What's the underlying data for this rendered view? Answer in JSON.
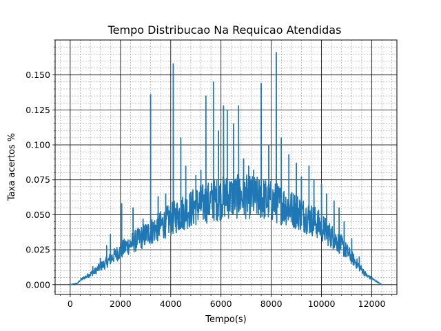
{
  "chart_data": {
    "type": "line",
    "title": "Tempo Distribucao Na Requicao Atendidas",
    "xlabel": "Tempo(s)",
    "ylabel": "Taxa acertos %",
    "xlim": [
      -600,
      13000
    ],
    "ylim": [
      -0.007,
      0.175
    ],
    "xticks": [
      0,
      2000,
      4000,
      6000,
      8000,
      10000,
      12000
    ],
    "xtick_labels": [
      "0",
      "2000",
      "4000",
      "6000",
      "8000",
      "10000",
      "12000"
    ],
    "yticks": [
      0.0,
      0.025,
      0.05,
      0.075,
      0.1,
      0.125,
      0.15
    ],
    "ytick_labels": [
      "0.000",
      "0.025",
      "0.050",
      "0.075",
      "0.100",
      "0.125",
      "0.150"
    ],
    "grid": true,
    "minor_grid": true,
    "line_color": "#1f77b4",
    "series": [
      {
        "x": [
          0,
          300,
          400,
          600,
          800,
          1000,
          1200,
          1400,
          1600,
          1800,
          2000,
          2200,
          2400,
          2600,
          2800,
          3000,
          3200,
          3400,
          3600,
          3800,
          4000,
          4200,
          4400,
          4600,
          4800,
          5000,
          5200,
          5400,
          5600,
          5800,
          6000,
          6200,
          6400,
          6600,
          6800,
          7000,
          7200,
          7400,
          7600,
          7800,
          8000,
          8200,
          8400,
          8600,
          8800,
          9000,
          9200,
          9400,
          9600,
          9800,
          10000,
          10200,
          10400,
          10600,
          10800,
          11000,
          11200,
          11400,
          11600,
          11800,
          12000,
          12200,
          12400
        ],
        "y": [
          0.0,
          0.001,
          0.003,
          0.005,
          0.007,
          0.009,
          0.012,
          0.014,
          0.017,
          0.02,
          0.022,
          0.025,
          0.027,
          0.029,
          0.031,
          0.033,
          0.035,
          0.037,
          0.039,
          0.041,
          0.043,
          0.045,
          0.047,
          0.049,
          0.05,
          0.052,
          0.053,
          0.054,
          0.055,
          0.056,
          0.057,
          0.058,
          0.058,
          0.058,
          0.058,
          0.058,
          0.058,
          0.057,
          0.057,
          0.056,
          0.055,
          0.054,
          0.053,
          0.052,
          0.05,
          0.049,
          0.047,
          0.045,
          0.043,
          0.041,
          0.038,
          0.035,
          0.032,
          0.029,
          0.026,
          0.022,
          0.018,
          0.014,
          0.01,
          0.006,
          0.004,
          0.002,
          0.0
        ]
      }
    ],
    "spikes": [
      {
        "x": 900,
        "y": 0.013
      },
      {
        "x": 1200,
        "y": 0.019
      },
      {
        "x": 1450,
        "y": 0.028
      },
      {
        "x": 1600,
        "y": 0.036
      },
      {
        "x": 2050,
        "y": 0.058
      },
      {
        "x": 2500,
        "y": 0.055
      },
      {
        "x": 2900,
        "y": 0.047
      },
      {
        "x": 3200,
        "y": 0.136
      },
      {
        "x": 3500,
        "y": 0.063
      },
      {
        "x": 3800,
        "y": 0.065
      },
      {
        "x": 4100,
        "y": 0.158
      },
      {
        "x": 4400,
        "y": 0.105
      },
      {
        "x": 4600,
        "y": 0.085
      },
      {
        "x": 5000,
        "y": 0.078
      },
      {
        "x": 5200,
        "y": 0.082
      },
      {
        "x": 5400,
        "y": 0.135
      },
      {
        "x": 5700,
        "y": 0.145
      },
      {
        "x": 5900,
        "y": 0.11
      },
      {
        "x": 6100,
        "y": 0.128
      },
      {
        "x": 6250,
        "y": 0.125
      },
      {
        "x": 6500,
        "y": 0.115
      },
      {
        "x": 6700,
        "y": 0.128
      },
      {
        "x": 6900,
        "y": 0.09
      },
      {
        "x": 7100,
        "y": 0.085
      },
      {
        "x": 7300,
        "y": 0.082
      },
      {
        "x": 7600,
        "y": 0.144
      },
      {
        "x": 7900,
        "y": 0.1
      },
      {
        "x": 8200,
        "y": 0.166
      },
      {
        "x": 8400,
        "y": 0.105
      },
      {
        "x": 8700,
        "y": 0.093
      },
      {
        "x": 9000,
        "y": 0.087
      },
      {
        "x": 9200,
        "y": 0.077
      },
      {
        "x": 9500,
        "y": 0.085
      },
      {
        "x": 9700,
        "y": 0.075
      },
      {
        "x": 10000,
        "y": 0.072
      },
      {
        "x": 10200,
        "y": 0.065
      },
      {
        "x": 10500,
        "y": 0.06
      },
      {
        "x": 10700,
        "y": 0.055
      },
      {
        "x": 10900,
        "y": 0.045
      },
      {
        "x": 11200,
        "y": 0.033
      },
      {
        "x": 11500,
        "y": 0.02
      }
    ]
  }
}
